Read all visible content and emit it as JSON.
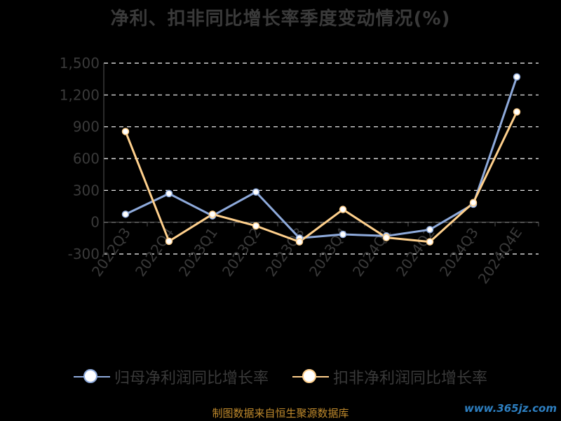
{
  "title": "净利、扣非同比增长率季度变动情况(%)",
  "chart_data": {
    "type": "line",
    "categories": [
      "2022Q3",
      "2022Q4",
      "2023Q1",
      "2023Q2",
      "2023Q3",
      "2023Q4",
      "2024Q1",
      "2024Q2",
      "2024Q3",
      "2024Q4E"
    ],
    "series": [
      {
        "name": "归母净利润同比增长率",
        "color": "#8eaadb",
        "values": [
          75,
          270,
          60,
          285,
          -150,
          -115,
          -130,
          -70,
          170,
          1370
        ]
      },
      {
        "name": "扣非净利润同比增长率",
        "color": "#ffd08c",
        "values": [
          855,
          -180,
          75,
          -35,
          -185,
          120,
          -145,
          -185,
          185,
          1040
        ]
      }
    ],
    "yticks": [
      "1,500",
      "1,200",
      "900",
      "600",
      "300",
      "0",
      "-300"
    ],
    "ylim": [
      -300,
      1500
    ],
    "grid": true,
    "legend": "bottom"
  },
  "source": "制图数据来自恒生聚源数据库",
  "watermark": "www.365jz.com"
}
